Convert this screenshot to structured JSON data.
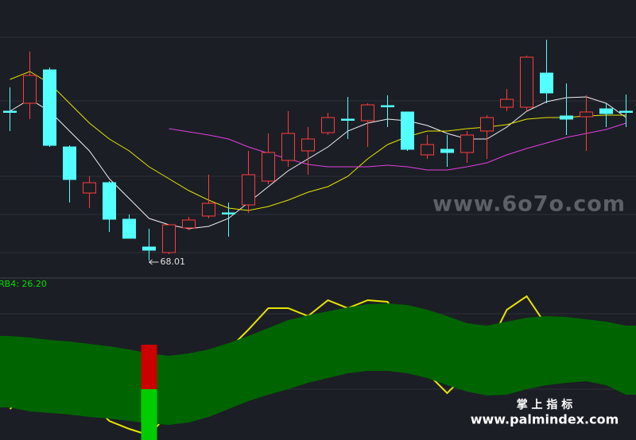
{
  "watermarks": [
    "www.6o7o.com",
    "掌 上 指 标",
    "www.palmindex.com"
  ],
  "chart_data": [
    {
      "type": "candlestick",
      "categories": [
        null,
        null,
        null,
        null,
        null,
        null,
        null,
        null,
        null,
        null,
        null,
        null,
        null,
        null,
        null,
        null,
        null,
        null,
        null,
        null,
        null,
        null,
        null,
        null,
        null,
        null,
        null,
        null,
        null,
        null,
        null,
        null
      ],
      "open": [
        77.41,
        77.91,
        80.01,
        75.16,
        72.26,
        72.91,
        70.61,
        68.86,
        68.51,
        70.06,
        70.81,
        71.01,
        71.51,
        73.01,
        74.31,
        74.91,
        76.06,
        76.91,
        76.81,
        77.76,
        77.36,
        74.66,
        75.01,
        74.81,
        76.16,
        77.66,
        77.66,
        79.81,
        77.11,
        77.06,
        77.56,
        77.41
      ],
      "high": [
        78.91,
        81.16,
        80.16,
        75.26,
        73.31,
        73.01,
        70.91,
        70.01,
        70.26,
        70.76,
        73.41,
        71.66,
        74.91,
        76.01,
        77.41,
        76.41,
        77.31,
        78.31,
        77.91,
        78.41,
        77.36,
        75.91,
        75.91,
        76.16,
        77.16,
        78.81,
        80.91,
        81.91,
        79.16,
        78.41,
        77.91,
        78.46
      ],
      "low": [
        76.16,
        76.91,
        75.16,
        71.66,
        71.31,
        69.81,
        69.41,
        68.01,
        68.41,
        69.91,
        70.66,
        69.51,
        71.01,
        72.81,
        73.91,
        73.41,
        75.91,
        75.66,
        75.16,
        76.41,
        74.91,
        74.41,
        73.91,
        74.16,
        74.41,
        77.41,
        77.41,
        77.91,
        75.91,
        74.91,
        76.41,
        76.41
      ],
      "close": [
        77.41,
        79.66,
        75.26,
        73.11,
        72.91,
        70.61,
        69.41,
        68.66,
        70.26,
        70.56,
        71.61,
        71.01,
        73.41,
        74.81,
        76.01,
        75.66,
        77.01,
        76.91,
        77.81,
        77.76,
        75.01,
        75.31,
        74.81,
        75.91,
        77.01,
        78.16,
        80.81,
        78.56,
        76.91,
        77.36,
        77.26,
        77.41
      ],
      "up_color": "#ff3c3c",
      "down_color": "#54ffff",
      "series": [
        {
          "color": "#f0f0f0",
          "values": [
            77.41,
            78.16,
            77.41,
            76.16,
            74.91,
            73.16,
            71.91,
            70.66,
            70.26,
            70.01,
            70.16,
            70.66,
            71.66,
            72.66,
            73.66,
            74.41,
            75.16,
            76.16,
            76.66,
            76.91,
            76.81,
            76.51,
            76.01,
            75.66,
            75.66,
            76.41,
            77.41,
            78.01,
            78.26,
            78.31,
            77.91,
            77.01
          ]
        },
        {
          "color": "#e6e600",
          "values": [
            79.41,
            79.91,
            79.16,
            77.91,
            76.66,
            75.66,
            74.91,
            73.91,
            73.16,
            72.41,
            71.81,
            71.31,
            71.16,
            71.41,
            71.81,
            72.31,
            72.66,
            73.31,
            74.41,
            75.31,
            75.81,
            76.16,
            76.16,
            76.31,
            76.41,
            76.56,
            76.91,
            77.01,
            77.01,
            77.11,
            77.16,
            77.16
          ]
        },
        {
          "color": "#e040e0",
          "values": [
            null,
            null,
            null,
            null,
            null,
            null,
            null,
            null,
            76.31,
            76.11,
            75.91,
            75.66,
            75.16,
            74.76,
            74.41,
            74.06,
            73.91,
            73.91,
            73.91,
            74.01,
            73.91,
            73.71,
            73.71,
            73.91,
            74.16,
            74.66,
            75.06,
            75.41,
            75.76,
            76.01,
            76.26,
            76.66
          ]
        }
      ],
      "ylim": [
        66.91,
        84.41
      ]
    },
    {
      "type": "indicator",
      "title": "RB4: 26.20",
      "categories": [
        null,
        null,
        null,
        null,
        null,
        null,
        null,
        null,
        null,
        null,
        null,
        null,
        null,
        null,
        null,
        null,
        null,
        null,
        null,
        null,
        null,
        null,
        null,
        null,
        null,
        null,
        null,
        null,
        null,
        null,
        null,
        null
      ],
      "series": [
        {
          "color": "#e6e600",
          "values": [
            19.5,
            32,
            37,
            32,
            24.5,
            12,
            7,
            3,
            17,
            32,
            47,
            57,
            69.5,
            83,
            83,
            78,
            88,
            83,
            88,
            87,
            67,
            42,
            29.5,
            42,
            57,
            82,
            90.5,
            72,
            57,
            52,
            47,
            37
          ]
        }
      ],
      "band": {
        "color": "#006400",
        "upper": [
          65.5,
          64.5,
          63,
          62,
          60.5,
          59,
          57,
          54.5,
          53,
          54.5,
          57,
          61,
          65.5,
          70.5,
          75.5,
          78.5,
          81,
          83.5,
          85.5,
          86,
          85,
          82,
          78,
          73.5,
          72,
          74.5,
          77,
          78,
          77.5,
          76,
          74.5,
          72
        ],
        "lower": [
          20.5,
          18,
          17,
          16,
          14.5,
          13.5,
          12,
          10.5,
          9.5,
          11,
          14.5,
          19.5,
          24.5,
          28.5,
          32,
          36,
          39,
          42,
          43.5,
          43.5,
          42,
          39,
          34.5,
          30.5,
          28,
          28.5,
          32,
          34.5,
          36,
          37,
          34.5,
          28.5
        ]
      },
      "bars": [
        {
          "color": "#00cc00",
          "values": [
            null,
            null,
            null,
            null,
            null,
            null,
            null,
            32,
            null,
            null,
            null,
            null,
            null,
            null,
            null,
            null,
            null,
            null,
            null,
            null,
            null,
            null,
            null,
            null,
            null,
            null,
            null,
            null,
            null,
            null,
            null,
            null
          ]
        },
        {
          "color": "#cc0000",
          "values": [
            null,
            null,
            null,
            null,
            null,
            null,
            null,
            28,
            null,
            null,
            null,
            null,
            null,
            null,
            null,
            null,
            null,
            null,
            null,
            null,
            null,
            null,
            null,
            null,
            null,
            null,
            null,
            null,
            null,
            null,
            null,
            null
          ]
        }
      ],
      "ylim": [
        0,
        100
      ]
    }
  ]
}
